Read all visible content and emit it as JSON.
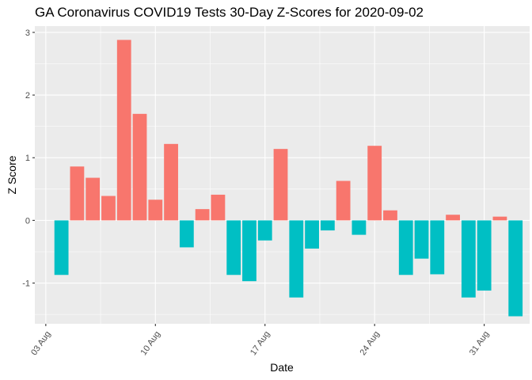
{
  "chart_data": {
    "type": "bar",
    "title": "GA Coronavirus COVID19 Tests 30-Day Z-Scores for 2020-09-02",
    "xlabel": "Date",
    "ylabel": "Z Score",
    "ylim": [
      -1.65,
      3.1
    ],
    "y_ticks": [
      -1,
      0,
      1,
      2,
      3
    ],
    "x_ticks": [
      {
        "label": "03 Aug",
        "day": 0
      },
      {
        "label": "10 Aug",
        "day": 7
      },
      {
        "label": "17 Aug",
        "day": 14
      },
      {
        "label": "24 Aug",
        "day": 21
      },
      {
        "label": "31 Aug",
        "day": 28
      }
    ],
    "x_range_days": [
      -0.7,
      30.9
    ],
    "grid": true,
    "colors": {
      "positive": "#F8766D",
      "negative": "#00BFC4",
      "panel": "#EBEBEB",
      "grid": "#FFFFFF"
    },
    "categories": [
      "2020-08-04",
      "2020-08-05",
      "2020-08-06",
      "2020-08-07",
      "2020-08-08",
      "2020-08-09",
      "2020-08-10",
      "2020-08-11",
      "2020-08-12",
      "2020-08-13",
      "2020-08-14",
      "2020-08-15",
      "2020-08-16",
      "2020-08-17",
      "2020-08-18",
      "2020-08-19",
      "2020-08-20",
      "2020-08-21",
      "2020-08-22",
      "2020-08-23",
      "2020-08-24",
      "2020-08-25",
      "2020-08-26",
      "2020-08-27",
      "2020-08-28",
      "2020-08-29",
      "2020-08-30",
      "2020-08-31",
      "2020-09-01",
      "2020-09-02"
    ],
    "values": [
      -0.87,
      0.86,
      0.68,
      0.39,
      2.88,
      1.7,
      0.33,
      1.22,
      -0.43,
      0.18,
      0.41,
      -0.87,
      -0.97,
      -0.32,
      1.14,
      -1.23,
      -0.45,
      -0.16,
      0.63,
      -0.23,
      1.19,
      0.16,
      -0.87,
      -0.61,
      -0.86,
      0.09,
      -1.23,
      -1.12,
      0.06,
      -1.53
    ]
  }
}
